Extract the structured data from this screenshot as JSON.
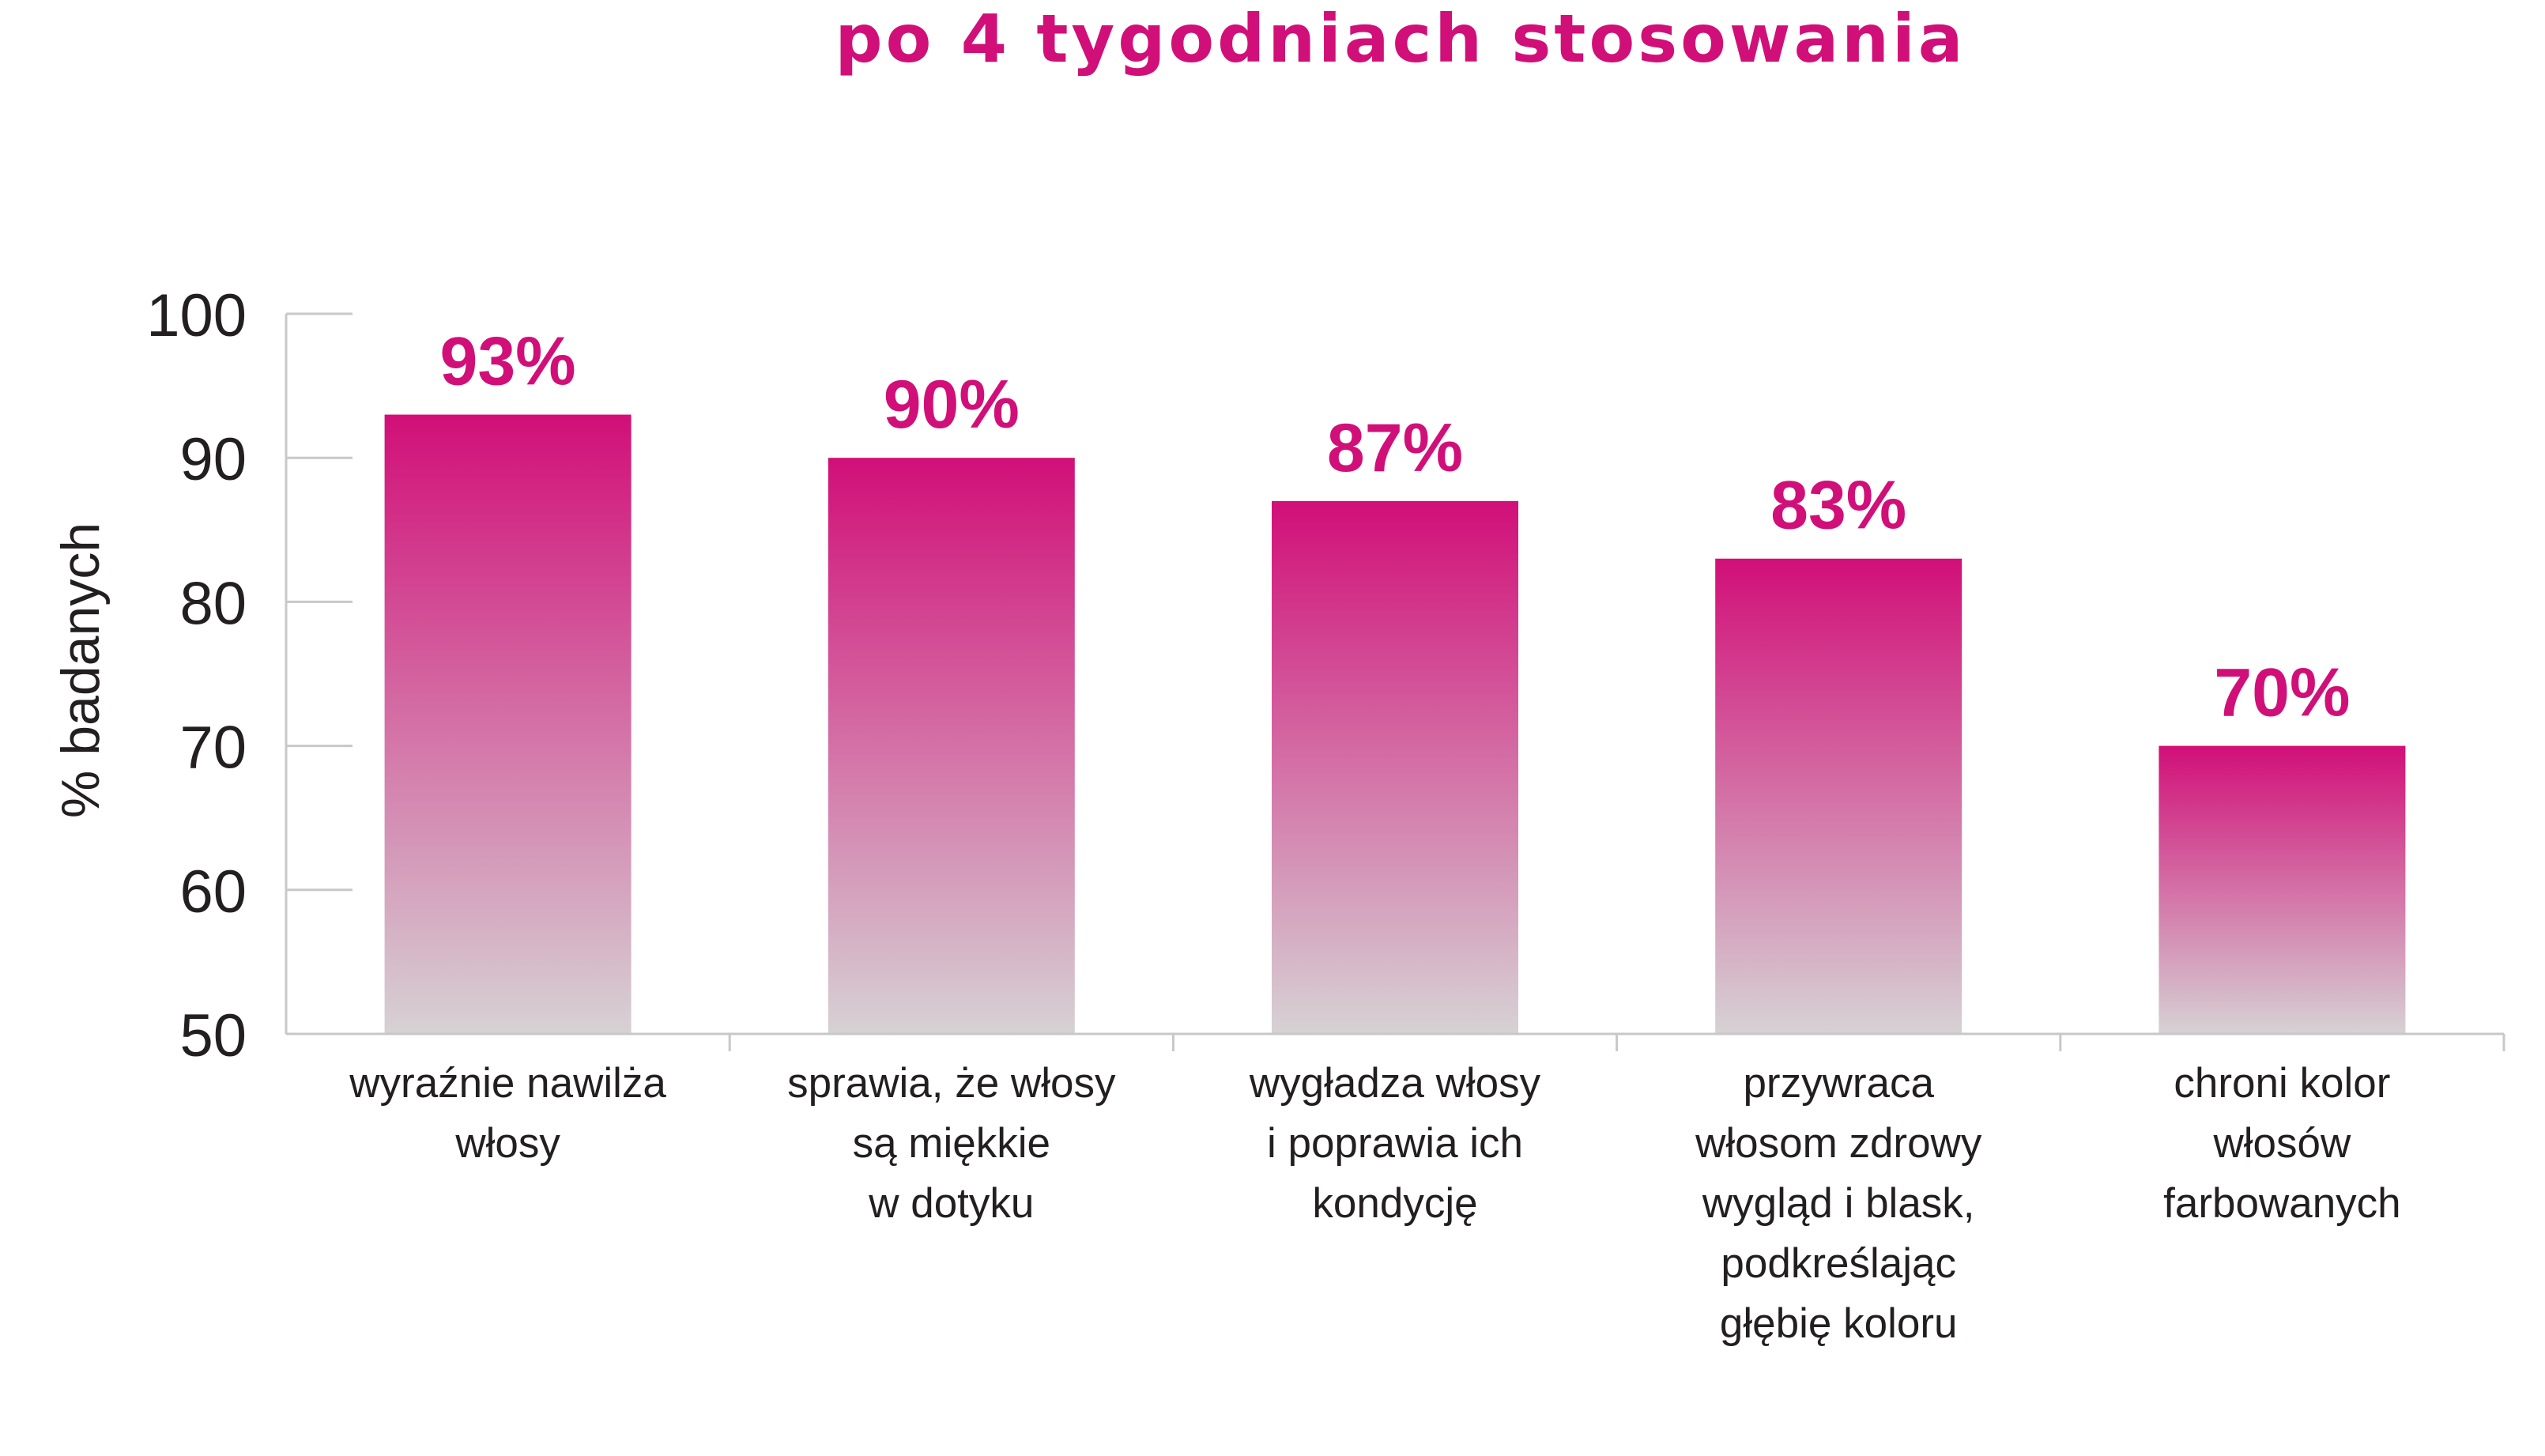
{
  "colors": {
    "accent": "#d10f78",
    "bar_bottom": "#d6d2d4",
    "axis": "#c8c8c8",
    "text": "#231f20"
  },
  "chart_data": {
    "type": "bar",
    "title": "po 4 tygodniach stosowania",
    "ylabel": "% badanych",
    "xlabel": "",
    "ylim": [
      50,
      100
    ],
    "yticks": [
      50,
      60,
      70,
      80,
      90,
      100
    ],
    "categories": [
      [
        "wyraźnie nawilża",
        "włosy"
      ],
      [
        "sprawia, że włosy",
        "są miękkie",
        "w dotyku"
      ],
      [
        "wygładza włosy",
        "i poprawia ich",
        "kondycję"
      ],
      [
        "przywraca",
        "włosom zdrowy",
        "wygląd i blask,",
        "podkreślając",
        "głębię koloru"
      ],
      [
        "chroni kolor",
        "włosów",
        "farbowanych"
      ]
    ],
    "values": [
      93,
      90,
      87,
      83,
      70
    ],
    "value_labels": [
      "93%",
      "90%",
      "87%",
      "83%",
      "70%"
    ],
    "grid": false
  }
}
